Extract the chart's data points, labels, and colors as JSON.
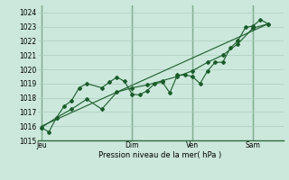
{
  "xlabel": "Pression niveau de la mer( hPa )",
  "background_color": "#cce8dc",
  "grid_color": "#aaccbb",
  "line_color": "#1a5c2a",
  "vline_color": "#2d6b3a",
  "ylim": [
    1015,
    1024.5
  ],
  "yticks": [
    1015,
    1016,
    1017,
    1018,
    1019,
    1020,
    1021,
    1022,
    1023,
    1024
  ],
  "day_labels": [
    "Jeu",
    "Dim",
    "Ven",
    "Sam"
  ],
  "day_positions": [
    0,
    12,
    20,
    28
  ],
  "xlim": [
    -0.5,
    32
  ],
  "series1_x": [
    0,
    1,
    2,
    3,
    4,
    5,
    6,
    8,
    9,
    10,
    11,
    12,
    13,
    14,
    15,
    16,
    17,
    18,
    19,
    20,
    21,
    22,
    23,
    24,
    25,
    26,
    27,
    28,
    29,
    30
  ],
  "series1_y": [
    1015.9,
    1015.6,
    1016.6,
    1017.4,
    1017.8,
    1018.7,
    1019.0,
    1018.7,
    1019.1,
    1019.45,
    1019.15,
    1018.25,
    1018.2,
    1018.5,
    1019.0,
    1019.1,
    1018.35,
    1019.6,
    1019.6,
    1019.5,
    1019.0,
    1019.9,
    1020.5,
    1020.5,
    1021.5,
    1022.0,
    1022.95,
    1023.05,
    1023.5,
    1023.2
  ],
  "series2_x": [
    0,
    2,
    4,
    6,
    8,
    10,
    12,
    14,
    16,
    18,
    20,
    22,
    24,
    26,
    28,
    30
  ],
  "series2_y": [
    1015.9,
    1016.6,
    1017.2,
    1017.9,
    1017.2,
    1018.4,
    1018.7,
    1018.9,
    1019.2,
    1019.5,
    1019.9,
    1020.5,
    1021.0,
    1021.8,
    1022.9,
    1023.2
  ],
  "series3_x": [
    0,
    30
  ],
  "series3_y": [
    1016.0,
    1023.2
  ]
}
